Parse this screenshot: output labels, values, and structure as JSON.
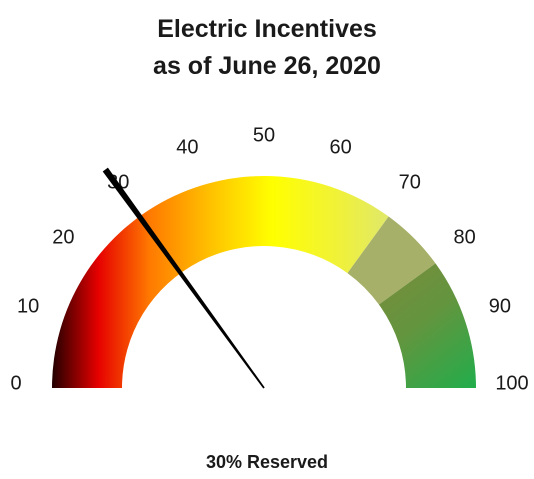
{
  "title_line1": "Electric Incentives",
  "title_line2": "as of June 26, 2020",
  "caption": "30% Reserved",
  "chart_data": {
    "type": "gauge",
    "title": "Electric Incentives as of June 26, 2020",
    "value": 30,
    "value_label": "30% Reserved",
    "range": [
      0,
      100
    ],
    "tick_labels": [
      "0",
      "10",
      "20",
      "30",
      "40",
      "50",
      "60",
      "70",
      "80",
      "90",
      "100"
    ],
    "bands": [
      {
        "from": 0,
        "to": 70,
        "color_start": "#1a0000",
        "color_mid": "#ffff00",
        "color_end": "#d8e870"
      },
      {
        "from": 70,
        "to": 80,
        "color": "#a7b068"
      },
      {
        "from": 80,
        "to": 100,
        "color_start": "#7f8a3c",
        "color_end": "#20a84a"
      }
    ],
    "colors": {
      "needle": "#000000",
      "text": "#1a1a1a"
    }
  }
}
